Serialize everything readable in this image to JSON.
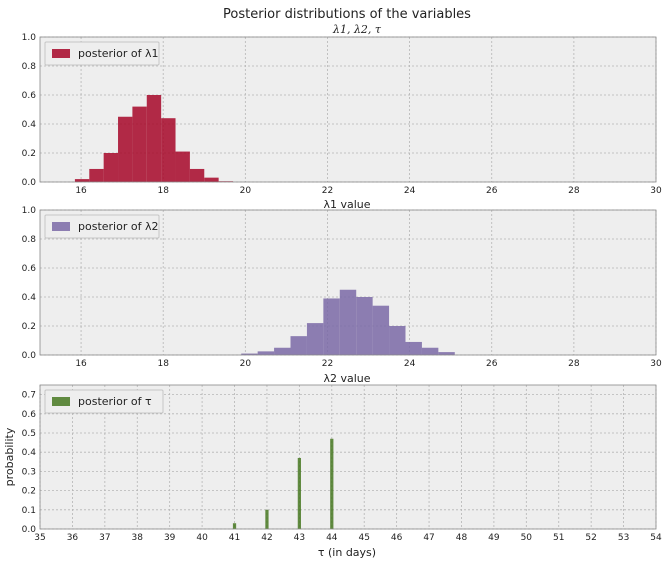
{
  "chart_data": [
    {
      "type": "bar",
      "title": "Posterior distributions of the variables",
      "subtitle": "λ1, λ2, τ",
      "xlabel": "λ1 value",
      "ylabel": "",
      "xlim": [
        15,
        30
      ],
      "ylim": [
        0,
        1.0
      ],
      "xticks": [
        "16",
        "18",
        "20",
        "22",
        "24",
        "26",
        "28",
        "30"
      ],
      "yticks": [
        "0.0",
        "0.2",
        "0.4",
        "0.6",
        "0.8",
        "1.0"
      ],
      "grid": true,
      "legend": "top-left",
      "series": [
        {
          "name": "posterior of λ1",
          "color": "#A60628",
          "bin_width": 0.35,
          "bins": [
            {
              "x": 15.85,
              "y": 0.02
            },
            {
              "x": 16.2,
              "y": 0.09
            },
            {
              "x": 16.55,
              "y": 0.2
            },
            {
              "x": 16.9,
              "y": 0.45
            },
            {
              "x": 17.25,
              "y": 0.52
            },
            {
              "x": 17.6,
              "y": 0.6
            },
            {
              "x": 17.95,
              "y": 0.44
            },
            {
              "x": 18.3,
              "y": 0.21
            },
            {
              "x": 18.65,
              "y": 0.09
            },
            {
              "x": 19.0,
              "y": 0.03
            },
            {
              "x": 19.35,
              "y": 0.005
            }
          ]
        }
      ]
    },
    {
      "type": "bar",
      "xlabel": "λ2 value",
      "ylabel": "",
      "xlim": [
        15,
        30
      ],
      "ylim": [
        0,
        1.0
      ],
      "xticks": [
        "16",
        "18",
        "20",
        "22",
        "24",
        "26",
        "28",
        "30"
      ],
      "yticks": [
        "0.0",
        "0.2",
        "0.4",
        "0.6",
        "0.8",
        "1.0"
      ],
      "grid": true,
      "legend": "top-left",
      "series": [
        {
          "name": "posterior of λ2",
          "color": "#7A68A6",
          "bin_width": 0.4,
          "bins": [
            {
              "x": 19.9,
              "y": 0.01
            },
            {
              "x": 20.3,
              "y": 0.025
            },
            {
              "x": 20.7,
              "y": 0.05
            },
            {
              "x": 21.1,
              "y": 0.13
            },
            {
              "x": 21.5,
              "y": 0.22
            },
            {
              "x": 21.9,
              "y": 0.39
            },
            {
              "x": 22.3,
              "y": 0.45
            },
            {
              "x": 22.7,
              "y": 0.4
            },
            {
              "x": 23.1,
              "y": 0.34
            },
            {
              "x": 23.5,
              "y": 0.2
            },
            {
              "x": 23.9,
              "y": 0.09
            },
            {
              "x": 24.3,
              "y": 0.05
            },
            {
              "x": 24.7,
              "y": 0.02
            }
          ]
        }
      ]
    },
    {
      "type": "bar",
      "xlabel": "τ (in days)",
      "ylabel": "probability",
      "xlim": [
        35,
        54
      ],
      "ylim": [
        0,
        0.75
      ],
      "xticks": [
        "35",
        "36",
        "37",
        "38",
        "39",
        "40",
        "41",
        "42",
        "43",
        "44",
        "45",
        "46",
        "47",
        "48",
        "49",
        "50",
        "51",
        "52",
        "53",
        "54"
      ],
      "yticks": [
        "0.0",
        "0.1",
        "0.2",
        "0.3",
        "0.4",
        "0.5",
        "0.6",
        "0.7"
      ],
      "grid": true,
      "legend": "top-left",
      "series": [
        {
          "name": "posterior of τ",
          "color": "#467821",
          "bin_width": 0.1,
          "bins": [
            {
              "x": 41,
              "y": 0.03
            },
            {
              "x": 42,
              "y": 0.1
            },
            {
              "x": 43,
              "y": 0.37
            },
            {
              "x": 44,
              "y": 0.47
            }
          ]
        }
      ]
    }
  ]
}
